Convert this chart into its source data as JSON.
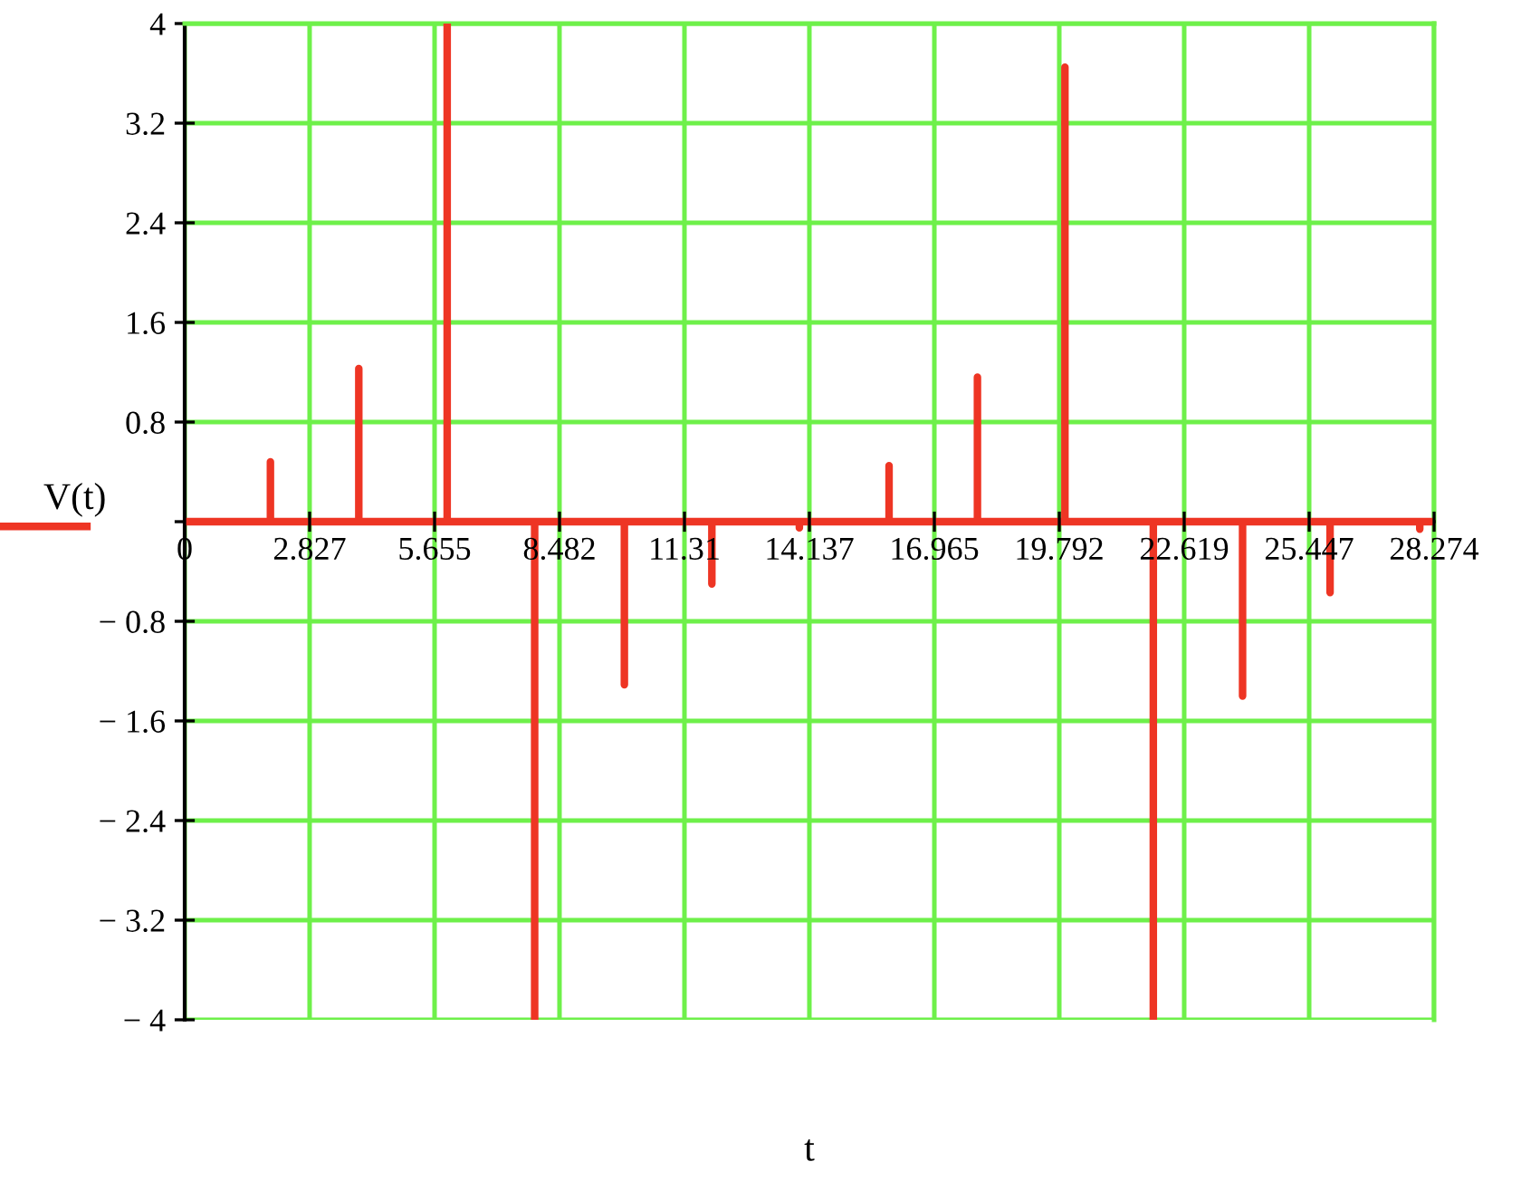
{
  "chart_data": {
    "type": "line",
    "xlabel": "t",
    "x": [
      0,
      1.94,
      1.94,
      1.94,
      3.94,
      3.94,
      3.94,
      5.94,
      5.94,
      5.94,
      7.92,
      7.92,
      7.92,
      9.95,
      9.95,
      9.95,
      11.93,
      11.93,
      11.93,
      13.91,
      13.91,
      13.91,
      15.94,
      15.94,
      15.94,
      17.94,
      17.94,
      17.94,
      19.92,
      19.92,
      19.92,
      21.92,
      21.92,
      21.92,
      23.94,
      23.94,
      23.94,
      25.92,
      25.92,
      25.92,
      27.95,
      27.95,
      27.95,
      28.274
    ],
    "series": [
      {
        "name": "V(t)",
        "color": "#ee3524",
        "values": [
          0,
          0,
          0.48,
          0,
          0,
          1.23,
          0,
          0,
          4,
          0,
          0,
          -4,
          0,
          0,
          -1.31,
          0,
          0,
          -0.5,
          0,
          0,
          -0.05,
          0,
          0,
          0.45,
          0,
          0,
          1.16,
          0,
          0,
          3.65,
          0,
          0,
          -4,
          0,
          0,
          -1.4,
          0,
          0,
          -0.57,
          0,
          0,
          -0.06,
          0,
          0
        ]
      }
    ],
    "xlim": [
      0,
      28.274
    ],
    "ylim": [
      -4,
      4
    ],
    "xticks": [
      0,
      2.827,
      5.655,
      8.482,
      11.31,
      14.137,
      16.965,
      19.792,
      22.619,
      25.447,
      28.274
    ],
    "yticks": [
      {
        "value": -4,
        "label": "− 4"
      },
      {
        "value": -3.2,
        "label": "− 3.2"
      },
      {
        "value": -2.4,
        "label": "− 2.4"
      },
      {
        "value": -1.6,
        "label": "− 1.6"
      },
      {
        "value": -0.8,
        "label": "− 0.8"
      },
      {
        "value": 0,
        "label": null
      },
      {
        "value": 0.8,
        "label": "0.8"
      },
      {
        "value": 1.6,
        "label": "1.6"
      },
      {
        "value": 2.4,
        "label": "2.4"
      },
      {
        "value": 3.2,
        "label": "3.2"
      },
      {
        "value": 4,
        "label": "4"
      }
    ],
    "grid": true,
    "legend": "left",
    "line_style": "solid",
    "marker": "none"
  }
}
